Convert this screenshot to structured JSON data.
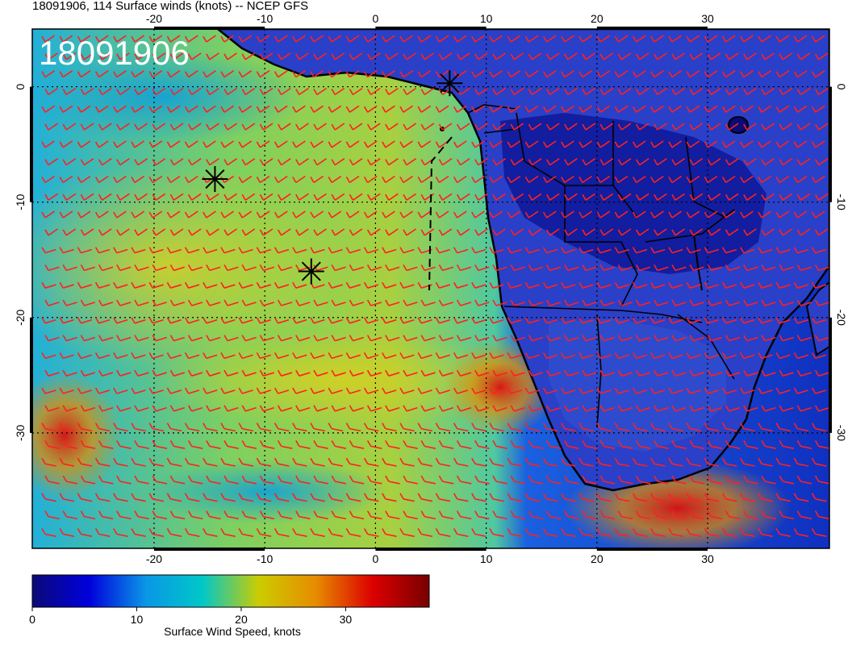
{
  "header": {
    "title": "18091906, 114 Surface winds (knots) -- NCEP GFS"
  },
  "map": {
    "date_stamp": "18091906",
    "lon_range": [
      -31,
      41
    ],
    "lat_range": [
      5,
      -40
    ],
    "x_tick_labels": [
      "-20",
      "-10",
      "0",
      "10",
      "20",
      "30"
    ],
    "x_tick_values": [
      -20,
      -10,
      0,
      10,
      20,
      30
    ],
    "y_tick_labels": [
      "0",
      "-10",
      "-20",
      "-30"
    ],
    "y_tick_values": [
      0,
      -10,
      -20,
      -30
    ],
    "grid": true,
    "barb_color": "#ff2020",
    "coast_color": "#000000",
    "markers": [
      {
        "lon": 6.7,
        "lat": 0.3
      },
      {
        "lon": -14.5,
        "lat": -8.0
      },
      {
        "lon": -5.8,
        "lat": -16.0
      }
    ]
  },
  "colorbar": {
    "min": 0,
    "max": 38,
    "tick_labels": [
      "0",
      "10",
      "20",
      "30"
    ],
    "tick_values": [
      0,
      10,
      20,
      30
    ],
    "label": "Surface Wind Speed, knots",
    "colors": [
      "#0a0a78",
      "#0000dc",
      "#0a96e6",
      "#00c8c8",
      "#cccc00",
      "#e68c00",
      "#dc0000",
      "#780000"
    ]
  }
}
